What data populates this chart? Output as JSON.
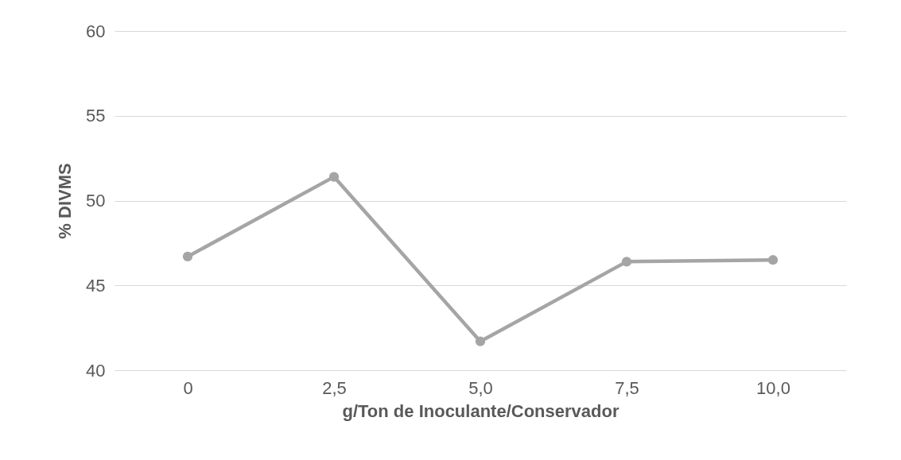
{
  "chart_data": {
    "type": "line",
    "xlabel": "g/Ton de Inoculante/Conservador",
    "ylabel": "% DIVMS",
    "categories": [
      "0",
      "2,5",
      "5,0",
      "7,5",
      "10,0"
    ],
    "series": [
      {
        "color": "#a5a5a5",
        "values": [
          46.7,
          51.4,
          41.7,
          46.4,
          46.5
        ]
      }
    ],
    "ylim": [
      40,
      60
    ],
    "yticks": [
      40,
      45,
      50,
      55,
      60
    ],
    "grid": "y",
    "marker": "circle",
    "line_style": "solid"
  }
}
